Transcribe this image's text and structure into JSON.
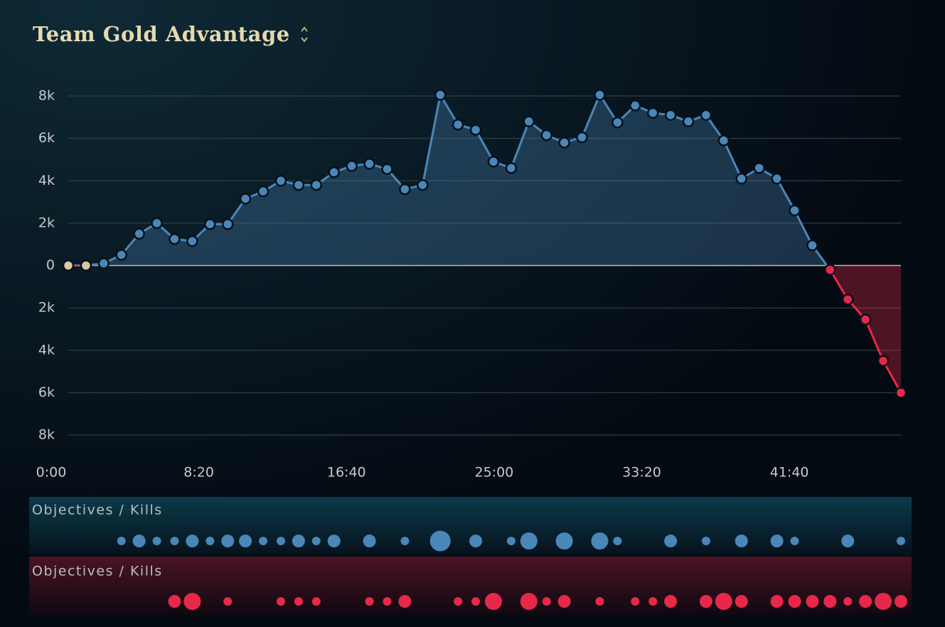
{
  "chart_data": {
    "type": "line",
    "title": "Team Gold Advantage",
    "x": [
      0,
      60,
      120,
      180,
      240,
      300,
      360,
      420,
      480,
      540,
      600,
      660,
      720,
      780,
      840,
      900,
      960,
      1020,
      1080,
      1140,
      1200,
      1260,
      1320,
      1380,
      1440,
      1500,
      1560,
      1620,
      1680,
      1740,
      1800,
      1860,
      1920,
      1980,
      2040,
      2100,
      2160,
      2220,
      2280,
      2340,
      2400,
      2460,
      2520,
      2580,
      2640,
      2700,
      2760,
      2820
    ],
    "values": [
      0,
      0,
      100,
      500,
      1500,
      2000,
      1250,
      1150,
      1950,
      1950,
      3150,
      3500,
      4000,
      3800,
      3800,
      4400,
      4700,
      4800,
      4550,
      3600,
      3800,
      8050,
      6650,
      6400,
      4900,
      4600,
      6800,
      6150,
      5800,
      6050,
      8050,
      6750,
      7550,
      7200,
      7100,
      6800,
      7100,
      5900,
      4100,
      4600,
      4100,
      2600,
      950,
      -200,
      -1600,
      -2550,
      -4500,
      -6000
    ],
    "positive_color": "#4a86b8",
    "negative_color": "#e8284a",
    "neutral_color": "#d8c9a0",
    "xlim": [
      0,
      2820
    ],
    "xticks": [
      {
        "value": 0,
        "label": "0:00"
      },
      {
        "value": 500,
        "label": "8:20"
      },
      {
        "value": 1000,
        "label": "16:40"
      },
      {
        "value": 1500,
        "label": "25:00"
      },
      {
        "value": 2000,
        "label": "33:20"
      },
      {
        "value": 2500,
        "label": "41:40"
      }
    ],
    "ylim": [
      -8000,
      8000
    ],
    "yticks": [
      {
        "value": 8000,
        "label": "8k"
      },
      {
        "value": 6000,
        "label": "6k"
      },
      {
        "value": 4000,
        "label": "4k"
      },
      {
        "value": 2000,
        "label": "2k"
      },
      {
        "value": 0,
        "label": "0"
      },
      {
        "value": -2000,
        "label": "2k"
      },
      {
        "value": -4000,
        "label": "4k"
      },
      {
        "value": -6000,
        "label": "6k"
      },
      {
        "value": -8000,
        "label": "8k"
      }
    ],
    "grid": true,
    "event_rows": [
      {
        "name": "Objectives / Kills",
        "color": "#4a86b8",
        "x": [
          180,
          240,
          300,
          360,
          420,
          480,
          540,
          600,
          660,
          720,
          780,
          840,
          900,
          1020,
          1140,
          1260,
          1380,
          1500,
          1560,
          1680,
          1800,
          1860,
          2040,
          2160,
          2280,
          2400,
          2460,
          2640,
          2820
        ],
        "sizes": [
          1,
          2,
          1,
          1,
          2,
          1,
          2,
          2,
          1,
          1,
          2,
          1,
          2,
          2,
          1,
          4,
          2,
          1,
          3,
          3,
          3,
          1,
          2,
          1,
          2,
          2,
          1,
          2,
          1
        ]
      },
      {
        "name": "Objectives / Kills",
        "color": "#e8284a",
        "x": [
          360,
          420,
          540,
          720,
          780,
          840,
          1020,
          1080,
          1140,
          1320,
          1380,
          1440,
          1560,
          1620,
          1680,
          1800,
          1920,
          1980,
          2040,
          2160,
          2220,
          2280,
          2400,
          2460,
          2520,
          2580,
          2640,
          2700,
          2760,
          2820
        ],
        "sizes": [
          2,
          3,
          1,
          1,
          1,
          1,
          1,
          1,
          2,
          1,
          1,
          3,
          3,
          1,
          2,
          1,
          1,
          1,
          2,
          2,
          3,
          2,
          2,
          2,
          2,
          2,
          1,
          2,
          3,
          2
        ]
      }
    ]
  }
}
